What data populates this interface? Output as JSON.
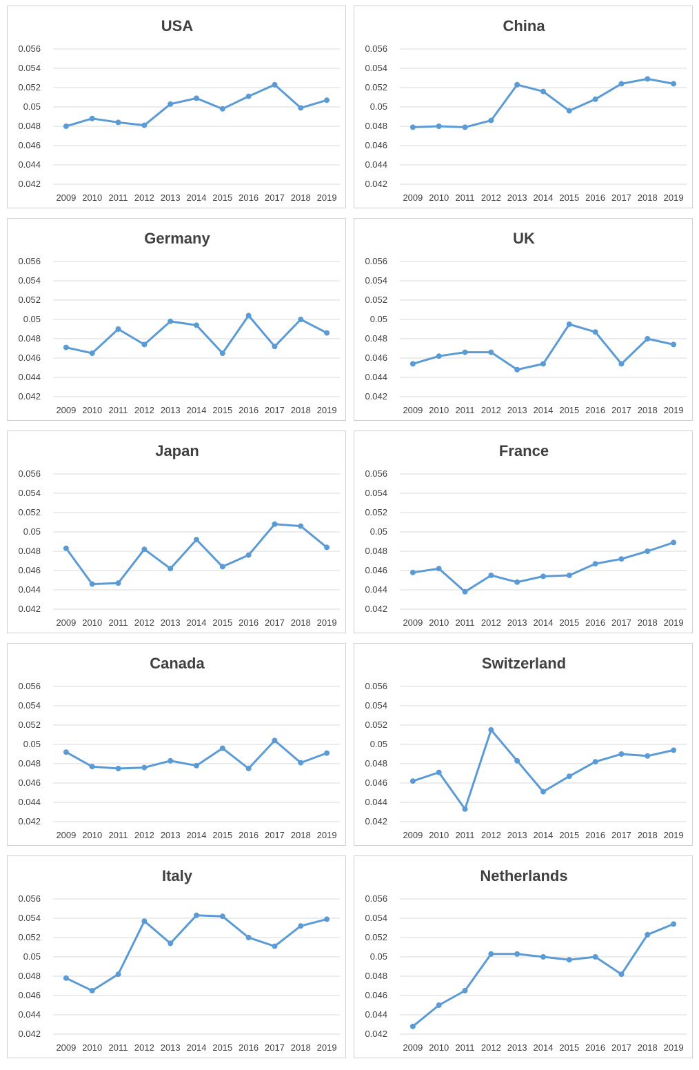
{
  "style": {
    "line_color": "#5b9bd5",
    "grid": true
  },
  "chart_data": [
    {
      "type": "line",
      "title": "USA",
      "x": [
        "2009",
        "2010",
        "2011",
        "2012",
        "2013",
        "2014",
        "2015",
        "2016",
        "2017",
        "2018",
        "2019"
      ],
      "y_ticks": [
        "0.056",
        "0.054",
        "0.052",
        "0.05",
        "0.048",
        "0.046",
        "0.044",
        "0.042"
      ],
      "ylim": [
        0.042,
        0.056
      ],
      "values": [
        0.048,
        0.0488,
        0.0484,
        0.0481,
        0.0503,
        0.0509,
        0.0498,
        0.0511,
        0.0523,
        0.0499,
        0.0507
      ]
    },
    {
      "type": "line",
      "title": "China",
      "x": [
        "2009",
        "2010",
        "2011",
        "2012",
        "2013",
        "2014",
        "2015",
        "2016",
        "2017",
        "2018",
        "2019"
      ],
      "y_ticks": [
        "0.056",
        "0.054",
        "0.052",
        "0.05",
        "0.048",
        "0.046",
        "0.044",
        "0.042"
      ],
      "ylim": [
        0.042,
        0.056
      ],
      "values": [
        0.0479,
        0.048,
        0.0479,
        0.0486,
        0.0523,
        0.0516,
        0.0496,
        0.0508,
        0.0524,
        0.0529,
        0.0524
      ]
    },
    {
      "type": "line",
      "title": "Germany",
      "x": [
        "2009",
        "2010",
        "2011",
        "2012",
        "2013",
        "2014",
        "2015",
        "2016",
        "2017",
        "2018",
        "2019"
      ],
      "y_ticks": [
        "0.056",
        "0.054",
        "0.052",
        "0.05",
        "0.048",
        "0.046",
        "0.044",
        "0.042"
      ],
      "ylim": [
        0.042,
        0.056
      ],
      "values": [
        0.0471,
        0.0465,
        0.049,
        0.0474,
        0.0498,
        0.0494,
        0.0465,
        0.0504,
        0.0472,
        0.05,
        0.0486
      ]
    },
    {
      "type": "line",
      "title": "UK",
      "x": [
        "2009",
        "2010",
        "2011",
        "2012",
        "2013",
        "2014",
        "2015",
        "2016",
        "2017",
        "2018",
        "2019"
      ],
      "y_ticks": [
        "0.056",
        "0.054",
        "0.052",
        "0.05",
        "0.048",
        "0.046",
        "0.044",
        "0.042"
      ],
      "ylim": [
        0.042,
        0.056
      ],
      "values": [
        0.0454,
        0.0462,
        0.0466,
        0.0466,
        0.0448,
        0.0454,
        0.0495,
        0.0487,
        0.0454,
        0.048,
        0.0474
      ]
    },
    {
      "type": "line",
      "title": "Japan",
      "x": [
        "2009",
        "2010",
        "2011",
        "2012",
        "2013",
        "2014",
        "2015",
        "2016",
        "2017",
        "2018",
        "2019"
      ],
      "y_ticks": [
        "0.056",
        "0.054",
        "0.052",
        "0.05",
        "0.048",
        "0.046",
        "0.044",
        "0.042"
      ],
      "ylim": [
        0.042,
        0.056
      ],
      "values": [
        0.0483,
        0.0446,
        0.0447,
        0.0482,
        0.0462,
        0.0492,
        0.0464,
        0.0476,
        0.0508,
        0.0506,
        0.0484
      ]
    },
    {
      "type": "line",
      "title": "France",
      "x": [
        "2009",
        "2010",
        "2011",
        "2012",
        "2013",
        "2014",
        "2015",
        "2016",
        "2017",
        "2018",
        "2019"
      ],
      "y_ticks": [
        "0.056",
        "0.054",
        "0.052",
        "0.05",
        "0.048",
        "0.046",
        "0.044",
        "0.042"
      ],
      "ylim": [
        0.042,
        0.056
      ],
      "values": [
        0.0458,
        0.0462,
        0.0438,
        0.0455,
        0.0448,
        0.0454,
        0.0455,
        0.0467,
        0.0472,
        0.048,
        0.0489
      ]
    },
    {
      "type": "line",
      "title": "Canada",
      "x": [
        "2009",
        "2010",
        "2011",
        "2012",
        "2013",
        "2014",
        "2015",
        "2016",
        "2017",
        "2018",
        "2019"
      ],
      "y_ticks": [
        "0.056",
        "0.054",
        "0.052",
        "0.05",
        "0.048",
        "0.046",
        "0.044",
        "0.042"
      ],
      "ylim": [
        0.042,
        0.056
      ],
      "values": [
        0.0492,
        0.0477,
        0.0475,
        0.0476,
        0.0483,
        0.0478,
        0.0496,
        0.0475,
        0.0504,
        0.0481,
        0.0491
      ]
    },
    {
      "type": "line",
      "title": "Switzerland",
      "x": [
        "2009",
        "2010",
        "2011",
        "2012",
        "2013",
        "2014",
        "2015",
        "2016",
        "2017",
        "2018",
        "2019"
      ],
      "y_ticks": [
        "0.056",
        "0.054",
        "0.052",
        "0.05",
        "0.048",
        "0.046",
        "0.044",
        "0.042"
      ],
      "ylim": [
        0.042,
        0.056
      ],
      "values": [
        0.0462,
        0.0471,
        0.0433,
        0.0515,
        0.0483,
        0.0451,
        0.0467,
        0.0482,
        0.049,
        0.0488,
        0.0494
      ]
    },
    {
      "type": "line",
      "title": "Italy",
      "x": [
        "2009",
        "2010",
        "2011",
        "2012",
        "2013",
        "2014",
        "2015",
        "2016",
        "2017",
        "2018",
        "2019"
      ],
      "y_ticks": [
        "0.056",
        "0.054",
        "0.052",
        "0.05",
        "0.048",
        "0.046",
        "0.044",
        "0.042"
      ],
      "ylim": [
        0.042,
        0.056
      ],
      "values": [
        0.0478,
        0.0465,
        0.0482,
        0.0537,
        0.0514,
        0.0543,
        0.0542,
        0.052,
        0.0511,
        0.0532,
        0.0539
      ]
    },
    {
      "type": "line",
      "title": "Netherlands",
      "x": [
        "2009",
        "2010",
        "2011",
        "2012",
        "2013",
        "2014",
        "2015",
        "2016",
        "2017",
        "2018",
        "2019"
      ],
      "y_ticks": [
        "0.056",
        "0.054",
        "0.052",
        "0.05",
        "0.048",
        "0.046",
        "0.044",
        "0.042"
      ],
      "ylim": [
        0.042,
        0.056
      ],
      "values": [
        0.0428,
        0.045,
        0.0465,
        0.0503,
        0.0503,
        0.05,
        0.0497,
        0.05,
        0.0482,
        0.0523,
        0.0534
      ]
    }
  ]
}
